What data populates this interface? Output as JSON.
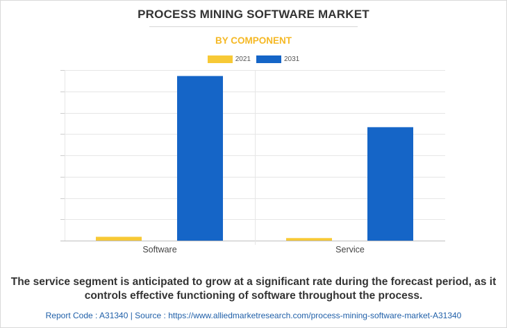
{
  "header": {
    "title": "PROCESS MINING SOFTWARE MARKET",
    "subtitle": "BY COMPONENT"
  },
  "chart_data": {
    "type": "bar",
    "categories": [
      "Software",
      "Service"
    ],
    "series": [
      {
        "name": "2021",
        "color": "#f7c936",
        "values": [
          1.8,
          1.2
        ]
      },
      {
        "name": "2031",
        "color": "#1565c7",
        "values": [
          77.2,
          53.2
        ]
      }
    ],
    "ylim": [
      0,
      80
    ],
    "y_ticks": [
      0,
      10,
      20,
      30,
      40,
      50,
      60,
      70,
      80
    ],
    "y_tick_labels_visible": false,
    "grid": true,
    "legend_position": "top-center",
    "title": "PROCESS MINING SOFTWARE MARKET",
    "subtitle": "BY COMPONENT",
    "xlabel": "",
    "ylabel": ""
  },
  "caption": "The service segment is anticipated to grow at a significant rate during the forecast period, as it controls effective functioning of software throughout the process.",
  "footer": "Report Code : A31340  |  Source : https://www.alliedmarketresearch.com/process-mining-software-market-A31340"
}
